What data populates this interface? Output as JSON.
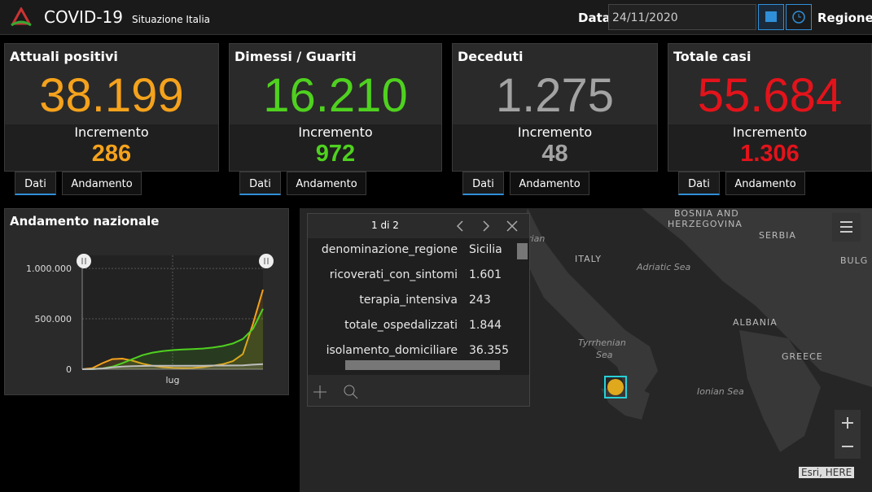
{
  "header": {
    "title": "COVID-19",
    "subtitle": "Situazione Italia",
    "date_label": "Data",
    "date_value": "24/11/2020",
    "region_label": "Regione"
  },
  "cards": [
    {
      "title": "Attuali positivi",
      "value": "38.199",
      "increment_label": "Incremento",
      "increment": "286",
      "color": "#f5a21c",
      "tabs": [
        "Dati",
        "Andamento"
      ]
    },
    {
      "title": "Dimessi / Guariti",
      "value": "16.210",
      "increment_label": "Incremento",
      "increment": "972",
      "color": "#4fd11f",
      "tabs": [
        "Dati",
        "Andamento"
      ]
    },
    {
      "title": "Deceduti",
      "value": "1.275",
      "increment_label": "Incremento",
      "increment": "48",
      "color": "#a3a3a3",
      "tabs": [
        "Dati",
        "Andamento"
      ]
    },
    {
      "title": "Totale casi",
      "value": "55.684",
      "increment_label": "Incremento",
      "increment": "1.306",
      "color": "#e3131b",
      "tabs": [
        "Dati",
        "Andamento"
      ]
    }
  ],
  "chart": {
    "type": "line",
    "title": "Andamento nazionale",
    "categories": [
      null,
      null,
      null,
      null,
      null,
      null,
      null,
      null,
      null,
      "lug",
      null,
      null,
      null,
      null,
      null,
      null,
      null,
      null,
      null
    ],
    "series": [
      {
        "color": "#f5a21c",
        "values": [
          0,
          10000,
          60000,
          100000,
          105000,
          85000,
          55000,
          35000,
          20000,
          14000,
          12000,
          13000,
          20000,
          35000,
          50000,
          80000,
          150000,
          450000,
          790000
        ]
      },
      {
        "color": "#4fd11f",
        "values": [
          0,
          1000,
          8000,
          25000,
          60000,
          100000,
          140000,
          165000,
          180000,
          190000,
          195000,
          200000,
          205000,
          215000,
          230000,
          255000,
          300000,
          400000,
          600000
        ]
      },
      {
        "color": "#bdbdbd",
        "values": [
          0,
          1000,
          7000,
          18000,
          26000,
          30000,
          32000,
          34000,
          35000,
          35000,
          35000,
          35000,
          35000,
          36000,
          36000,
          37000,
          39000,
          45000,
          51000
        ]
      }
    ],
    "ylim": [
      0,
      1130000
    ],
    "yticks": [
      0,
      {
        "value": 500000,
        "label": "500.000"
      },
      {
        "value": 1000000,
        "label": "1.000.000"
      }
    ],
    "grid": true
  },
  "popup": {
    "pager": "1 di 2",
    "fields": [
      [
        "denominazione_regione",
        "Sicilia"
      ],
      [
        "ricoverati_con_sintomi",
        "1.601"
      ],
      [
        "terapia_intensiva",
        "243"
      ],
      [
        "totale_ospedalizzati",
        "1.844"
      ],
      [
        "isolamento_domiciliare",
        "36.355"
      ]
    ]
  },
  "map": {
    "labels": [
      "BOSNIA AND",
      "HERZEGOVINA",
      "SERBIA",
      "BULG",
      "ITALY",
      "Adriatic Sea",
      "rian",
      "Tyrrhenian",
      "Sea",
      "ALBANIA",
      "GREECE",
      "Ionian Sea"
    ],
    "attribution": "Esri, HERE"
  }
}
